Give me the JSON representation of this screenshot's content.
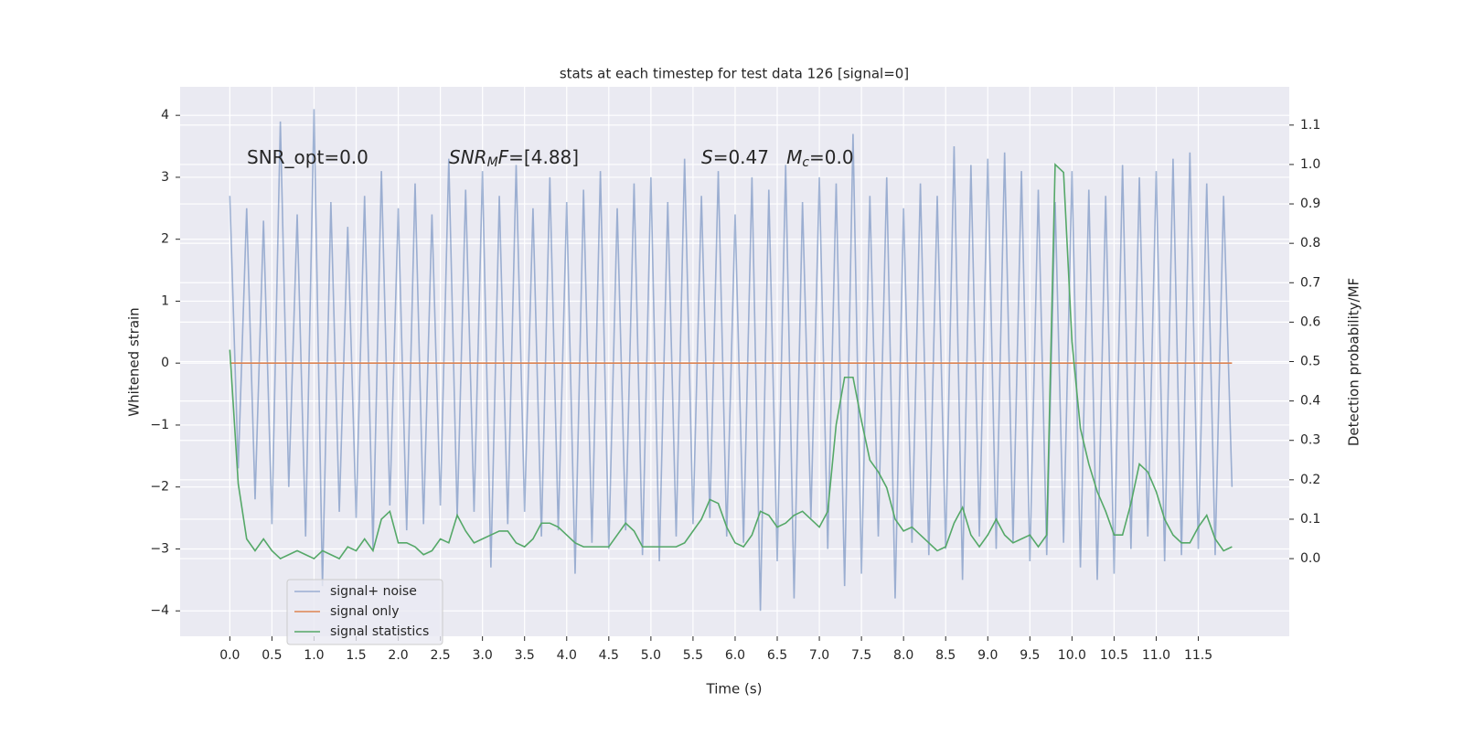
{
  "chart_data": {
    "type": "line",
    "title": "stats at each timestep for test data 126 [signal=0]",
    "xlabel": "Time (s)",
    "ylabel": "Whitened strain",
    "y2label": "Detection probability/MF",
    "annotations": [
      [
        {
          "text": "SNR_opt=0.0"
        }
      ],
      [
        {
          "text": "SNR",
          "italic": true
        },
        {
          "text": "M",
          "italic": true,
          "sub": true
        },
        {
          "text": "F",
          "italic": true
        },
        {
          "text": "=[4.88]"
        }
      ],
      [
        {
          "text": "S",
          "italic": true
        },
        {
          "text": "=0.47   "
        },
        {
          "text": "M",
          "italic": true
        },
        {
          "text": "c",
          "italic": true,
          "sub": true
        },
        {
          "text": "=0.0"
        }
      ]
    ],
    "x": [
      0,
      0.1,
      0.2,
      0.3,
      0.4,
      0.5,
      0.6,
      0.7,
      0.8,
      0.9,
      1,
      1.1,
      1.2,
      1.3,
      1.4,
      1.5,
      1.6,
      1.7,
      1.8,
      1.9,
      2,
      2.1,
      2.2,
      2.3,
      2.4,
      2.5,
      2.6,
      2.7,
      2.8,
      2.9,
      3,
      3.1,
      3.2,
      3.3,
      3.4,
      3.5,
      3.6,
      3.7,
      3.8,
      3.9,
      4,
      4.1,
      4.2,
      4.3,
      4.4,
      4.5,
      4.6,
      4.7,
      4.8,
      4.9,
      5,
      5.1,
      5.2,
      5.3,
      5.4,
      5.5,
      5.6,
      5.7,
      5.8,
      5.9,
      6,
      6.1,
      6.2,
      6.3,
      6.4,
      6.5,
      6.6,
      6.7,
      6.8,
      6.9,
      7,
      7.1,
      7.2,
      7.3,
      7.4,
      7.5,
      7.6,
      7.7,
      7.8,
      7.9,
      8,
      8.1,
      8.2,
      8.3,
      8.4,
      8.5,
      8.6,
      8.7,
      8.8,
      8.9,
      9,
      9.1,
      9.2,
      9.3,
      9.4,
      9.5,
      9.6,
      9.7,
      9.8,
      9.9,
      10,
      10.1,
      10.2,
      10.3,
      10.4,
      10.5,
      10.6,
      10.7,
      10.8,
      10.9,
      11,
      11.1,
      11.2,
      11.3,
      11.4,
      11.5,
      11.6,
      11.7,
      11.8,
      11.9
    ],
    "series": [
      {
        "name": "signal+ noise",
        "color": "#4c72b0",
        "opacity": 0.5,
        "values": [
          2.7,
          -1.7,
          2.5,
          -2.2,
          2.3,
          -2.6,
          3.9,
          -2.0,
          2.4,
          -2.8,
          4.1,
          -3.6,
          2.6,
          -2.4,
          2.2,
          -2.5,
          2.7,
          -3.0,
          3.1,
          -2.3,
          2.5,
          -2.7,
          2.9,
          -2.6,
          2.4,
          -2.3,
          3.3,
          -2.5,
          2.8,
          -2.4,
          3.1,
          -3.3,
          2.7,
          -2.6,
          3.2,
          -2.4,
          2.5,
          -2.8,
          3.0,
          -2.7,
          2.6,
          -3.4,
          2.8,
          -2.9,
          3.1,
          -3.0,
          2.5,
          -2.7,
          2.9,
          -3.1,
          3.0,
          -3.2,
          2.6,
          -2.8,
          3.3,
          -2.6,
          2.7,
          -2.5,
          3.1,
          -2.8,
          2.4,
          -2.9,
          3.0,
          -4.0,
          2.8,
          -3.2,
          3.2,
          -3.8,
          2.6,
          -2.5,
          3.0,
          -3.0,
          2.9,
          -3.6,
          3.7,
          -3.4,
          2.7,
          -2.8,
          3.0,
          -3.8,
          2.5,
          -2.9,
          2.9,
          -3.1,
          2.7,
          -3.0,
          3.5,
          -3.5,
          3.2,
          -2.8,
          3.3,
          -3.0,
          3.4,
          -2.9,
          3.1,
          -3.2,
          2.8,
          -3.1,
          2.6,
          -2.9,
          3.1,
          -3.3,
          2.8,
          -3.5,
          2.7,
          -3.4,
          3.2,
          -3.0,
          3.0,
          -2.8,
          3.1,
          -3.2,
          3.3,
          -3.1,
          3.4,
          -3.0,
          2.9,
          -3.1,
          2.7,
          -2.0
        ]
      },
      {
        "name": "signal only",
        "color": "#dd8452",
        "values": [
          0,
          0,
          0,
          0,
          0,
          0,
          0,
          0,
          0,
          0,
          0,
          0,
          0,
          0,
          0,
          0,
          0,
          0,
          0,
          0,
          0,
          0,
          0,
          0,
          0,
          0,
          0,
          0,
          0,
          0,
          0,
          0,
          0,
          0,
          0,
          0,
          0,
          0,
          0,
          0,
          0,
          0,
          0,
          0,
          0,
          0,
          0,
          0,
          0,
          0,
          0,
          0,
          0,
          0,
          0,
          0,
          0,
          0,
          0,
          0,
          0,
          0,
          0,
          0,
          0,
          0,
          0,
          0,
          0,
          0,
          0,
          0,
          0,
          0,
          0,
          0,
          0,
          0,
          0,
          0,
          0,
          0,
          0,
          0,
          0,
          0,
          0,
          0,
          0,
          0,
          0,
          0,
          0,
          0,
          0,
          0,
          0,
          0,
          0,
          0,
          0,
          0,
          0,
          0,
          0,
          0,
          0,
          0,
          0,
          0,
          0,
          0,
          0,
          0,
          0,
          0,
          0,
          0,
          0,
          0
        ]
      },
      {
        "name": "signal statistics",
        "color": "#55a868",
        "axis": "y2",
        "values": [
          0.53,
          0.19,
          0.05,
          0.02,
          0.05,
          0.02,
          0.0,
          0.01,
          0.02,
          0.01,
          0.0,
          0.02,
          0.01,
          0.0,
          0.03,
          0.02,
          0.05,
          0.02,
          0.1,
          0.12,
          0.04,
          0.04,
          0.03,
          0.01,
          0.02,
          0.05,
          0.04,
          0.11,
          0.07,
          0.04,
          0.05,
          0.06,
          0.07,
          0.07,
          0.04,
          0.03,
          0.05,
          0.09,
          0.09,
          0.08,
          0.06,
          0.04,
          0.03,
          0.03,
          0.03,
          0.03,
          0.06,
          0.09,
          0.07,
          0.03,
          0.03,
          0.03,
          0.03,
          0.03,
          0.04,
          0.07,
          0.1,
          0.15,
          0.14,
          0.08,
          0.04,
          0.03,
          0.06,
          0.12,
          0.11,
          0.08,
          0.09,
          0.11,
          0.12,
          0.1,
          0.08,
          0.12,
          0.34,
          0.46,
          0.46,
          0.35,
          0.25,
          0.22,
          0.18,
          0.1,
          0.07,
          0.08,
          0.06,
          0.04,
          0.02,
          0.03,
          0.09,
          0.13,
          0.06,
          0.03,
          0.06,
          0.1,
          0.06,
          0.04,
          0.05,
          0.06,
          0.03,
          0.06,
          1.0,
          0.98,
          0.55,
          0.33,
          0.24,
          0.17,
          0.12,
          0.06,
          0.06,
          0.14,
          0.24,
          0.22,
          0.17,
          0.1,
          0.06,
          0.04,
          0.04,
          0.08,
          0.11,
          0.05,
          0.02,
          0.03
        ]
      }
    ],
    "xlim": [
      -0.59,
      12.58
    ],
    "xticks": [
      {
        "value": 0,
        "label": "0.0"
      },
      {
        "value": 0.5,
        "label": "0.5"
      },
      {
        "value": 1,
        "label": "1.0"
      },
      {
        "value": 1.5,
        "label": "1.5"
      },
      {
        "value": 2,
        "label": "2.0"
      },
      {
        "value": 2.5,
        "label": "2.5"
      },
      {
        "value": 3,
        "label": "3.0"
      },
      {
        "value": 3.5,
        "label": "3.5"
      },
      {
        "value": 4,
        "label": "4.0"
      },
      {
        "value": 4.5,
        "label": "4.5"
      },
      {
        "value": 5,
        "label": "5.0"
      },
      {
        "value": 5.5,
        "label": "5.5"
      },
      {
        "value": 6,
        "label": "6.0"
      },
      {
        "value": 6.5,
        "label": "6.5"
      },
      {
        "value": 7,
        "label": "7.0"
      },
      {
        "value": 7.5,
        "label": "7.5"
      },
      {
        "value": 8,
        "label": "8.0"
      },
      {
        "value": 8.5,
        "label": "8.5"
      },
      {
        "value": 9,
        "label": "9.0"
      },
      {
        "value": 9.5,
        "label": "9.5"
      },
      {
        "value": 10,
        "label": "10.0"
      },
      {
        "value": 10.5,
        "label": "10.5"
      },
      {
        "value": 11,
        "label": "11.0"
      },
      {
        "value": 11.5,
        "label": "11.5"
      }
    ],
    "ylim": [
      -4.41,
      4.46
    ],
    "yticks": [
      {
        "value": -4,
        "label": "−4"
      },
      {
        "value": -3,
        "label": "−3"
      },
      {
        "value": -2,
        "label": "−2"
      },
      {
        "value": -1,
        "label": "−1"
      },
      0,
      1,
      2,
      3,
      4
    ],
    "y2lim": [
      -0.197,
      1.197
    ],
    "y2ticks": [
      {
        "value": 0,
        "label": "0.0"
      },
      0.1,
      0.2,
      0.3,
      0.4,
      0.5,
      0.6,
      0.7,
      0.8,
      0.9,
      {
        "value": 1,
        "label": "1.0"
      },
      1.1
    ],
    "grid": true,
    "legend": "lower left"
  }
}
